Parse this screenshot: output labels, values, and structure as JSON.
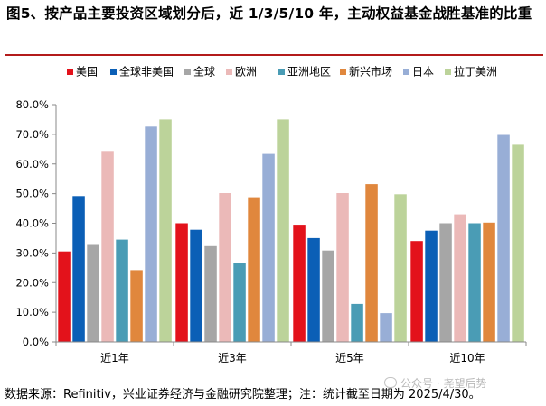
{
  "title": "图5、按产品主要投资区域划分后，近 1/3/5/10 年，主动权益基金战胜基准的比重",
  "source": "数据来源：Refinitiv，兴业证券经济与金融研究院整理；注：统计截至日期为 2025/4/30。",
  "watermark": "公众号 · 尧望后势",
  "chart_data": {
    "type": "bar",
    "categories": [
      "近1年",
      "近3年",
      "近5年",
      "近10年"
    ],
    "ylim": [
      0,
      80
    ],
    "yticks": [
      0,
      10,
      20,
      30,
      40,
      50,
      60,
      70,
      80
    ],
    "ytick_labels": [
      "0.0%",
      "10.0%",
      "20.0%",
      "30.0%",
      "40.0%",
      "50.0%",
      "60.0%",
      "70.0%",
      "80.0%"
    ],
    "y_unit": "%",
    "grid": false,
    "legend_position": "top",
    "series": [
      {
        "name": "美国",
        "color": "#e3121b",
        "values": [
          30.5,
          40.0,
          39.5,
          34.0
        ]
      },
      {
        "name": "全球非美国",
        "color": "#0b5fb6",
        "values": [
          49.2,
          37.8,
          35.0,
          37.5
        ]
      },
      {
        "name": "全球",
        "color": "#a6a6a6",
        "values": [
          33.0,
          32.3,
          30.8,
          40.0
        ]
      },
      {
        "name": "欧洲",
        "color": "#ebb9b8",
        "values": [
          64.4,
          50.2,
          50.2,
          43.0
        ]
      },
      {
        "name": "亚洲地区",
        "color": "#4a9cb5",
        "values": [
          34.5,
          26.7,
          12.8,
          40.0
        ]
      },
      {
        "name": "新兴市场",
        "color": "#e0873d",
        "values": [
          24.2,
          48.8,
          53.2,
          40.2
        ]
      },
      {
        "name": "日本",
        "color": "#98aed6",
        "values": [
          72.6,
          63.4,
          9.7,
          69.8
        ]
      },
      {
        "name": "拉丁美洲",
        "color": "#bcd39a",
        "values": [
          75.0,
          75.0,
          49.8,
          66.5
        ]
      }
    ]
  }
}
